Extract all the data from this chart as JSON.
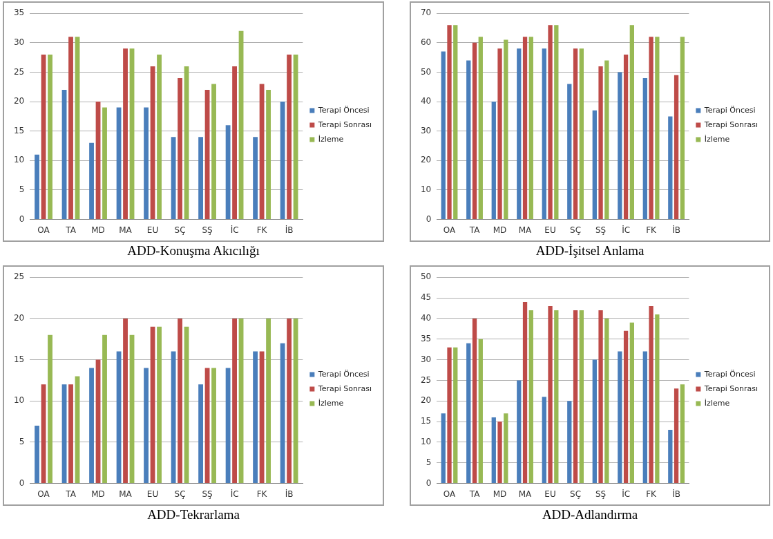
{
  "chart_data": [
    {
      "type": "bar",
      "title": "ADD-Konuşma Akıcılığı",
      "categories": [
        "OA",
        "TA",
        "MD",
        "MA",
        "EU",
        "SÇ",
        "SŞ",
        "İC",
        "FK",
        "İB"
      ],
      "series": [
        {
          "name": "Terapi Öncesi",
          "color": "#4a7ebb",
          "values": [
            11,
            22,
            13,
            19,
            19,
            14,
            14,
            16,
            14,
            20
          ]
        },
        {
          "name": "Terapi Sonrası",
          "color": "#be4b48",
          "values": [
            28,
            31,
            20,
            29,
            26,
            24,
            22,
            26,
            23,
            28
          ]
        },
        {
          "name": "İzleme",
          "color": "#98b954",
          "values": [
            28,
            31,
            19,
            29,
            28,
            26,
            23,
            32,
            22,
            28
          ]
        }
      ],
      "ylim": [
        0,
        35
      ],
      "yticks": [
        0,
        5,
        10,
        15,
        20,
        25,
        30,
        35
      ],
      "grid": "y",
      "legend": "right"
    },
    {
      "type": "bar",
      "title": "ADD-İşitsel Anlama",
      "categories": [
        "OA",
        "TA",
        "MD",
        "MA",
        "EU",
        "SÇ",
        "SŞ",
        "İC",
        "FK",
        "İB"
      ],
      "series": [
        {
          "name": "Terapi Öncesi",
          "color": "#4a7ebb",
          "values": [
            57,
            54,
            40,
            58,
            58,
            46,
            37,
            50,
            48,
            35
          ]
        },
        {
          "name": "Terapi Sonrası",
          "color": "#be4b48",
          "values": [
            66,
            60,
            58,
            62,
            66,
            58,
            52,
            56,
            62,
            49
          ]
        },
        {
          "name": "İzleme",
          "color": "#98b954",
          "values": [
            66,
            62,
            61,
            62,
            66,
            58,
            54,
            66,
            62,
            62
          ]
        }
      ],
      "ylim": [
        0,
        70
      ],
      "yticks": [
        0,
        10,
        20,
        30,
        40,
        50,
        60,
        70
      ],
      "grid": "y",
      "legend": "right"
    },
    {
      "type": "bar",
      "title": "ADD-Tekrarlama",
      "categories": [
        "OA",
        "TA",
        "MD",
        "MA",
        "EU",
        "SÇ",
        "SŞ",
        "İC",
        "FK",
        "İB"
      ],
      "series": [
        {
          "name": "Terapi Öncesi",
          "color": "#4a7ebb",
          "values": [
            7,
            12,
            14,
            16,
            14,
            16,
            12,
            14,
            16,
            17
          ]
        },
        {
          "name": "Terapi Sonrası",
          "color": "#be4b48",
          "values": [
            12,
            12,
            15,
            20,
            19,
            20,
            14,
            20,
            16,
            20
          ]
        },
        {
          "name": "İzleme",
          "color": "#98b954",
          "values": [
            18,
            13,
            18,
            18,
            19,
            19,
            14,
            20,
            20,
            20
          ]
        }
      ],
      "ylim": [
        0,
        25
      ],
      "yticks": [
        0,
        5,
        10,
        15,
        20,
        25
      ],
      "grid": "y",
      "legend": "right"
    },
    {
      "type": "bar",
      "title": "ADD-Adlandırma",
      "categories": [
        "OA",
        "TA",
        "MD",
        "MA",
        "EU",
        "SÇ",
        "SŞ",
        "İC",
        "FK",
        "İB"
      ],
      "series": [
        {
          "name": "Terapi Öncesi",
          "color": "#4a7ebb",
          "values": [
            17,
            34,
            16,
            25,
            21,
            20,
            30,
            32,
            32,
            13
          ]
        },
        {
          "name": "Terapi Sonrası",
          "color": "#be4b48",
          "values": [
            33,
            40,
            15,
            44,
            43,
            42,
            42,
            37,
            43,
            23
          ]
        },
        {
          "name": "İzleme",
          "color": "#98b954",
          "values": [
            33,
            35,
            17,
            42,
            42,
            42,
            40,
            39,
            41,
            24
          ]
        }
      ],
      "ylim": [
        0,
        50
      ],
      "yticks": [
        0,
        5,
        10,
        15,
        20,
        25,
        30,
        35,
        40,
        45,
        50
      ],
      "grid": "y",
      "legend": "right"
    }
  ]
}
